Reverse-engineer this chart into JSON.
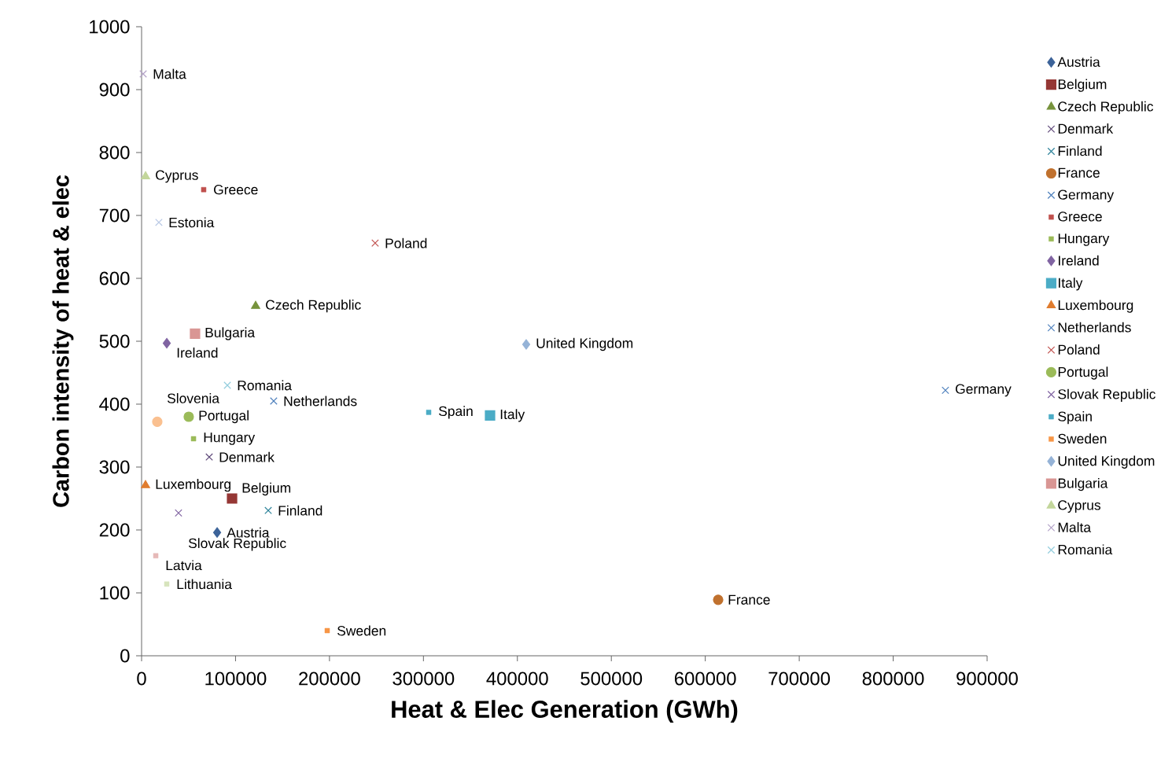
{
  "chart_data": {
    "type": "scatter",
    "xlabel": "Heat & Elec Generation (GWh)",
    "ylabel": "Carbon intensity of heat & elec",
    "xlim": [
      0,
      900000
    ],
    "xticks": [
      0,
      100000,
      200000,
      300000,
      400000,
      500000,
      600000,
      700000,
      800000,
      900000
    ],
    "ylim": [
      0,
      1000
    ],
    "yticks": [
      0,
      100,
      200,
      300,
      400,
      500,
      600,
      700,
      800,
      900,
      1000
    ],
    "grid": false,
    "legend": "right",
    "series": [
      {
        "name": "Austria",
        "color": "#3c6399",
        "marker": "diamond",
        "x": [
          80400
        ],
        "values": [
          196
        ]
      },
      {
        "name": "Belgium",
        "color": "#953735",
        "marker": "square",
        "x": [
          96300
        ],
        "values": [
          250
        ]
      },
      {
        "name": "Czech Republic",
        "color": "#77933c",
        "marker": "triangle",
        "x": [
          121400
        ],
        "values": [
          556
        ]
      },
      {
        "name": "Denmark",
        "color": "#604a7b",
        "marker": "cross",
        "x": [
          72000
        ],
        "values": [
          316
        ]
      },
      {
        "name": "Finland",
        "color": "#31859c",
        "marker": "cross",
        "x": [
          134800
        ],
        "values": [
          231
        ]
      },
      {
        "name": "France",
        "color": "#c0712e",
        "marker": "circle",
        "x": [
          613700
        ],
        "values": [
          89
        ]
      },
      {
        "name": "Germany",
        "color": "#4f81bd",
        "marker": "cross",
        "x": [
          855600
        ],
        "values": [
          422
        ]
      },
      {
        "name": "Greece",
        "color": "#c0504d",
        "x": [
          66100
        ],
        "values": [
          741
        ]
      },
      {
        "name": "Hungary",
        "color": "#9bbb59",
        "x": [
          55300
        ],
        "values": [
          345
        ]
      },
      {
        "name": "Ireland",
        "color": "#8064a2",
        "marker": "diamond",
        "x": [
          26800
        ],
        "values": [
          497
        ]
      },
      {
        "name": "Italy",
        "color": "#4bacc6",
        "marker": "square",
        "x": [
          370900
        ],
        "values": [
          382
        ]
      },
      {
        "name": "Luxembourg",
        "color": "#e07c2e",
        "marker": "triangle",
        "x": [
          4200
        ],
        "values": [
          271
        ]
      },
      {
        "name": "Netherlands",
        "color": "#4f81bd",
        "marker": "cross",
        "x": [
          140600
        ],
        "values": [
          405
        ]
      },
      {
        "name": "Poland",
        "color": "#c0504d",
        "marker": "cross",
        "x": [
          248600
        ],
        "values": [
          656
        ]
      },
      {
        "name": "Portugal",
        "color": "#9bbb59",
        "marker": "circle",
        "x": [
          50200
        ],
        "values": [
          380
        ]
      },
      {
        "name": "Slovak Republic",
        "color": "#8064a2",
        "marker": "cross",
        "x": [
          39300
        ],
        "values": [
          227
        ]
      },
      {
        "name": "Spain",
        "color": "#4bacc6",
        "x": [
          305600
        ],
        "values": [
          387
        ]
      },
      {
        "name": "Sweden",
        "color": "#f79646",
        "x": [
          197600
        ],
        "values": [
          40
        ]
      },
      {
        "name": "United Kingdom",
        "color": "#95b3d7",
        "marker": "diamond",
        "x": [
          409400
        ],
        "values": [
          495
        ]
      },
      {
        "name": "Bulgaria",
        "color": "#d99694",
        "marker": "square",
        "x": [
          56900
        ],
        "values": [
          512
        ]
      },
      {
        "name": "Cyprus",
        "color": "#c3d69b",
        "marker": "triangle",
        "x": [
          4200
        ],
        "values": [
          762
        ]
      },
      {
        "name": "Malta",
        "color": "#b3a2c7",
        "marker": "cross",
        "x": [
          1700
        ],
        "values": [
          925
        ]
      },
      {
        "name": "Romania",
        "color": "#93cddd",
        "marker": "cross",
        "x": [
          91300
        ],
        "values": [
          430
        ]
      },
      {
        "color": "#b9c9e5",
        "marker": "cross",
        "x": [
          18400
        ],
        "values": [
          689
        ]
      },
      {
        "color": "#fac090",
        "marker": "circle",
        "x": [
          16700
        ],
        "values": [
          372
        ]
      },
      {
        "color": "#e6b9b8",
        "x": [
          15100
        ],
        "values": [
          159
        ]
      },
      {
        "color": "#d7e4bd",
        "x": [
          26800
        ],
        "values": [
          114
        ]
      }
    ],
    "annotations": [
      {
        "text": "Estonia",
        "x": 18400,
        "y": 689
      },
      {
        "text": "Slovenia",
        "x": 16700,
        "y": 372
      },
      {
        "text": "Latvia",
        "x": 15100,
        "y": 159
      },
      {
        "text": "Lithuania",
        "x": 26800,
        "y": 114
      }
    ]
  }
}
